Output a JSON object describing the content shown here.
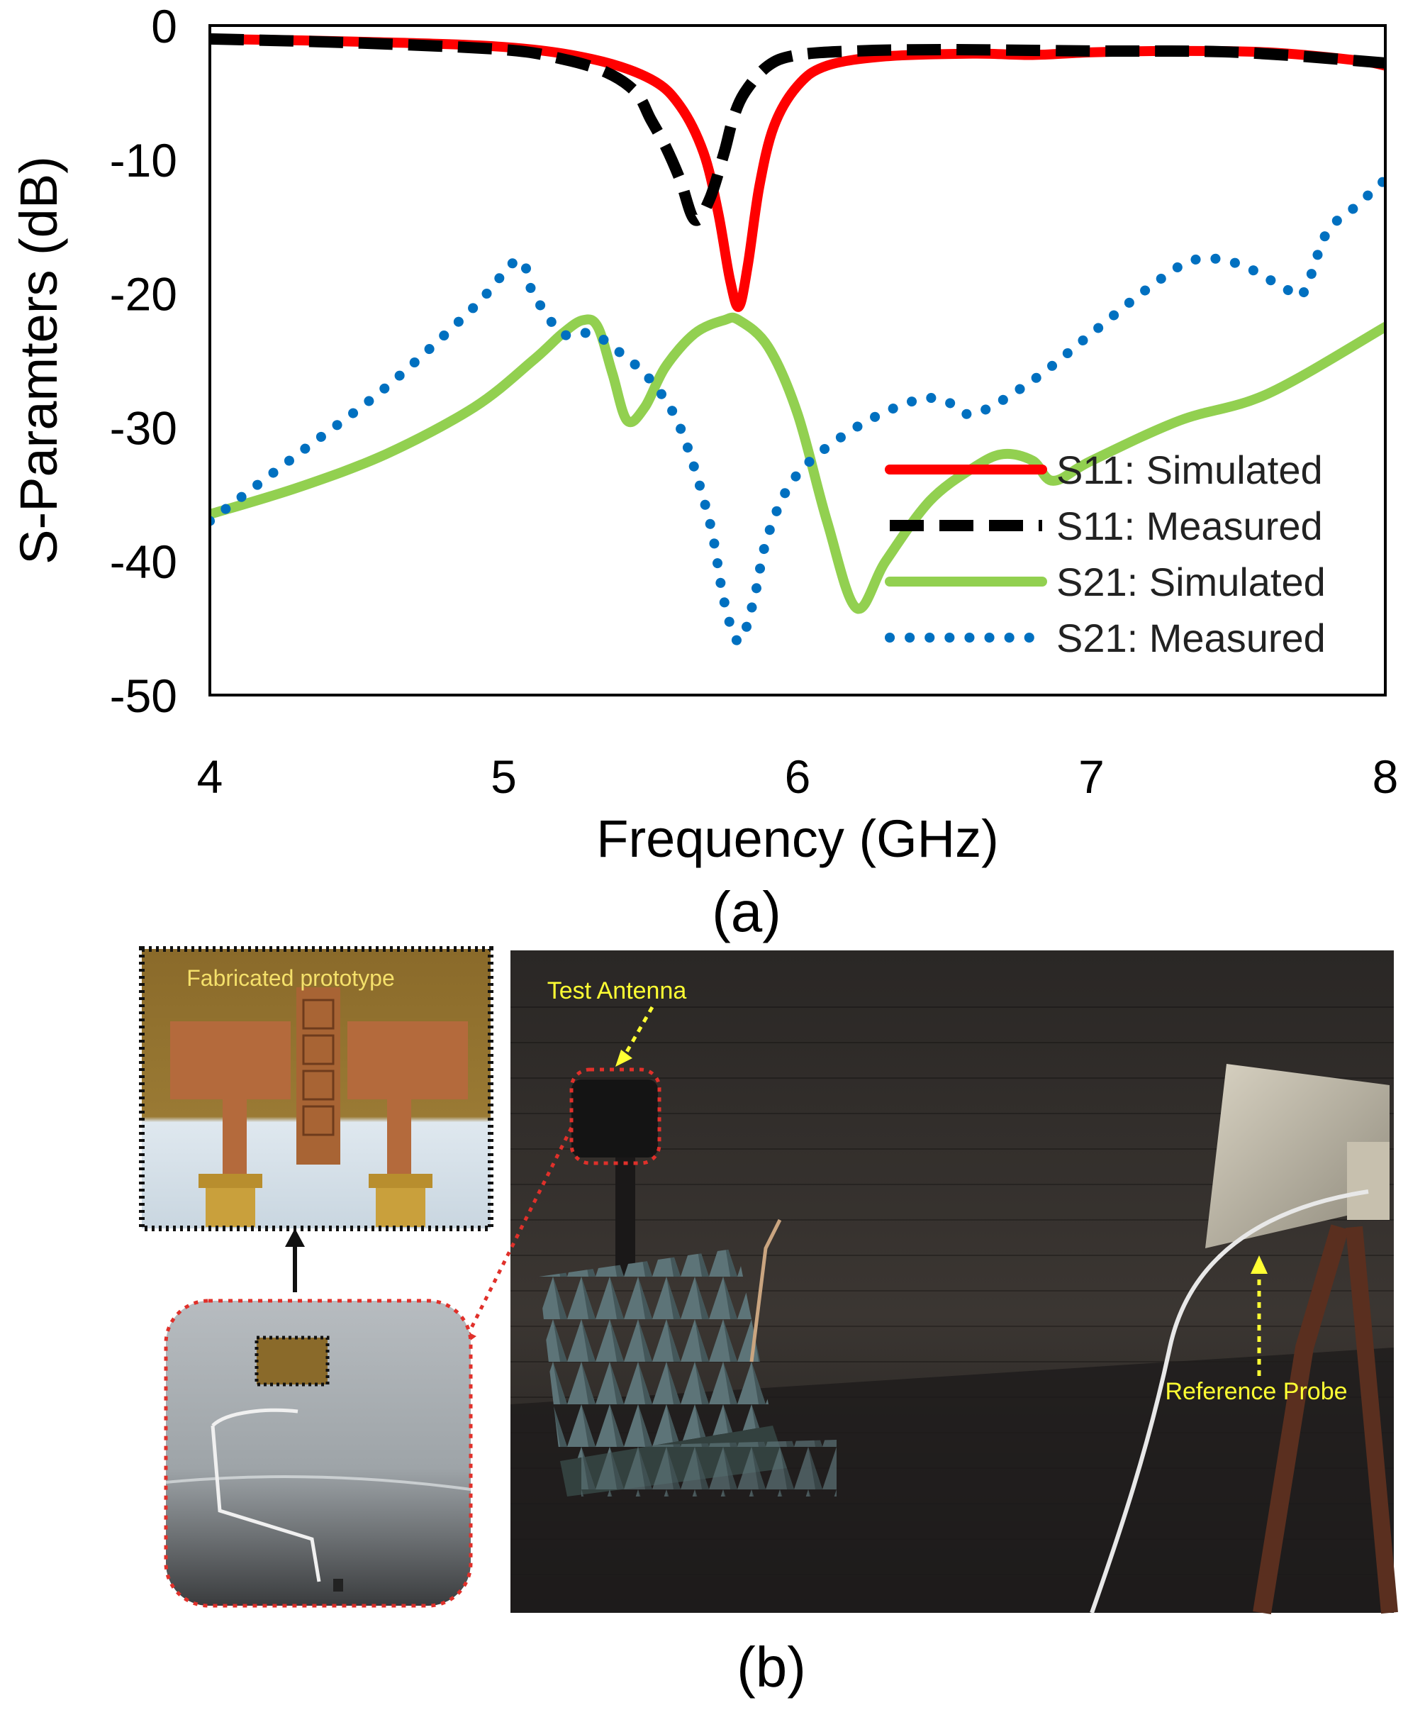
{
  "chart_data": {
    "type": "line",
    "xlabel": "Frequency (GHz)",
    "ylabel": "S-Paramters (dB)",
    "xlim": [
      4,
      8
    ],
    "ylim": [
      -50,
      0
    ],
    "xticks": [
      "4",
      "5",
      "6",
      "7",
      "8"
    ],
    "yticks": [
      "0",
      "-10",
      "-20",
      "-30",
      "-40",
      "-50"
    ],
    "grid": false,
    "legend_position": "bottom-right",
    "series": [
      {
        "name": "S11: Simulated",
        "color": "#ff0000",
        "style": "solid",
        "x": [
          4.0,
          4.5,
          5.0,
          5.3,
          5.5,
          5.6,
          5.68,
          5.73,
          5.77,
          5.8,
          5.83,
          5.87,
          5.92,
          6.0,
          6.1,
          6.3,
          6.6,
          6.8,
          7.0,
          7.3,
          7.6,
          7.9,
          8.0
        ],
        "y": [
          -1.0,
          -1.2,
          -1.6,
          -2.5,
          -4.0,
          -6.0,
          -9.5,
          -14.0,
          -19.0,
          -21.0,
          -18.0,
          -12.0,
          -7.5,
          -4.5,
          -3.0,
          -2.3,
          -2.1,
          -2.2,
          -2.0,
          -1.9,
          -2.0,
          -2.6,
          -3.0
        ]
      },
      {
        "name": "S11: Measured",
        "color": "#000000",
        "style": "dashed",
        "x": [
          4.0,
          4.5,
          5.0,
          5.2,
          5.35,
          5.45,
          5.5,
          5.55,
          5.6,
          5.65,
          5.7,
          5.75,
          5.78,
          5.82,
          5.9,
          6.0,
          6.2,
          6.5,
          7.0,
          7.5,
          8.0
        ],
        "y": [
          -1.0,
          -1.3,
          -1.8,
          -2.5,
          -3.5,
          -5.0,
          -7.0,
          -9.0,
          -11.5,
          -14.5,
          -13.0,
          -9.5,
          -7.0,
          -5.0,
          -3.0,
          -2.2,
          -1.9,
          -1.8,
          -1.9,
          -2.0,
          -2.8
        ]
      },
      {
        "name": "S21: Simulated",
        "color": "#92d050",
        "style": "solid",
        "x": [
          4.0,
          4.3,
          4.6,
          4.9,
          5.1,
          5.2,
          5.27,
          5.32,
          5.37,
          5.42,
          5.48,
          5.55,
          5.65,
          5.75,
          5.8,
          5.9,
          6.0,
          6.1,
          6.2,
          6.3,
          6.45,
          6.6,
          6.7,
          6.8,
          6.87,
          7.0,
          7.3,
          7.6,
          8.0
        ],
        "y": [
          -36.5,
          -34.5,
          -32.0,
          -28.5,
          -25.0,
          -23.0,
          -22.0,
          -22.5,
          -26.0,
          -29.5,
          -28.5,
          -25.5,
          -23.0,
          -22.0,
          -22.0,
          -24.0,
          -29.0,
          -37.0,
          -43.5,
          -40.0,
          -35.5,
          -33.0,
          -32.0,
          -32.5,
          -34.0,
          -32.5,
          -29.5,
          -27.5,
          -22.5
        ]
      },
      {
        "name": "S21: Measured",
        "color": "#0070c0",
        "style": "dotted",
        "x": [
          4.0,
          4.3,
          4.6,
          4.9,
          5.05,
          5.1,
          5.2,
          5.3,
          5.4,
          5.5,
          5.6,
          5.7,
          5.75,
          5.8,
          5.85,
          5.9,
          6.0,
          6.2,
          6.4,
          6.5,
          6.6,
          6.8,
          7.0,
          7.2,
          7.35,
          7.5,
          7.65,
          7.72,
          7.8,
          7.9,
          8.0
        ],
        "y": [
          -37.0,
          -32.0,
          -27.0,
          -21.0,
          -17.5,
          -20.0,
          -23.0,
          -23.0,
          -24.5,
          -26.5,
          -30.0,
          -37.0,
          -43.0,
          -46.0,
          -43.0,
          -38.0,
          -33.5,
          -30.0,
          -28.0,
          -28.0,
          -29.0,
          -26.5,
          -23.0,
          -19.5,
          -17.5,
          -17.8,
          -19.5,
          -20.0,
          -15.5,
          -13.5,
          -11.5
        ]
      }
    ]
  },
  "figure": {
    "panel_a_label": "(a)",
    "panel_b_label": "(b)"
  },
  "photo": {
    "inset_label": "Fabricated prototype",
    "test_antenna_label": "Test Antenna",
    "reference_probe_label": "Reference Probe"
  }
}
